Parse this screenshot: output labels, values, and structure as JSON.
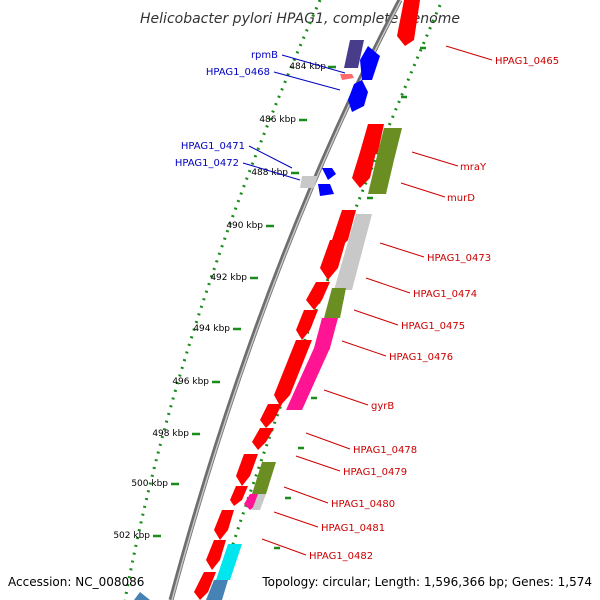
{
  "title": "Helicobacter pylori HPAG1, complete genome",
  "footer": {
    "accession": "Accession: NC_008086",
    "topology": "Topology: circular; Length: 1,596,366 bp; Genes: 1,574"
  },
  "colors": {
    "backbone": "#8c8c8c",
    "forward_label": "#0000c0",
    "reverse_label": "#cc0000",
    "dots": "#1a8c1a",
    "gene_red": "#ff0000",
    "gene_grey": "#c8c8c8",
    "gene_olive": "#6b8e23",
    "gene_pink": "#ff1493",
    "gene_cyan": "#00e5ee",
    "gene_blue": "#0000ff",
    "gene_purple": "#483d8b"
  },
  "ticks": [
    {
      "label": "484 kbp"
    },
    {
      "label": "486 kbp"
    },
    {
      "label": "488 kbp"
    },
    {
      "label": "490 kbp"
    },
    {
      "label": "492 kbp"
    },
    {
      "label": "494 kbp"
    },
    {
      "label": "496 kbp"
    },
    {
      "label": "498 kbp"
    },
    {
      "label": "500 kbp"
    },
    {
      "label": "502 kbp"
    }
  ],
  "forward_labels": [
    {
      "text": "rpmB"
    },
    {
      "text": "HPAG1_0468"
    },
    {
      "text": "HPAG1_0471"
    },
    {
      "text": "HPAG1_0472"
    }
  ],
  "reverse_labels": [
    {
      "text": "HPAG1_0465"
    },
    {
      "text": "mraY"
    },
    {
      "text": "murD"
    },
    {
      "text": "HPAG1_0473"
    },
    {
      "text": "HPAG1_0474"
    },
    {
      "text": "HPAG1_0475"
    },
    {
      "text": "HPAG1_0476"
    },
    {
      "text": "gyrB"
    },
    {
      "text": "HPAG1_0478"
    },
    {
      "text": "HPAG1_0479"
    },
    {
      "text": "HPAG1_0480"
    },
    {
      "text": "HPAG1_0481"
    },
    {
      "text": "HPAG1_0482"
    }
  ]
}
